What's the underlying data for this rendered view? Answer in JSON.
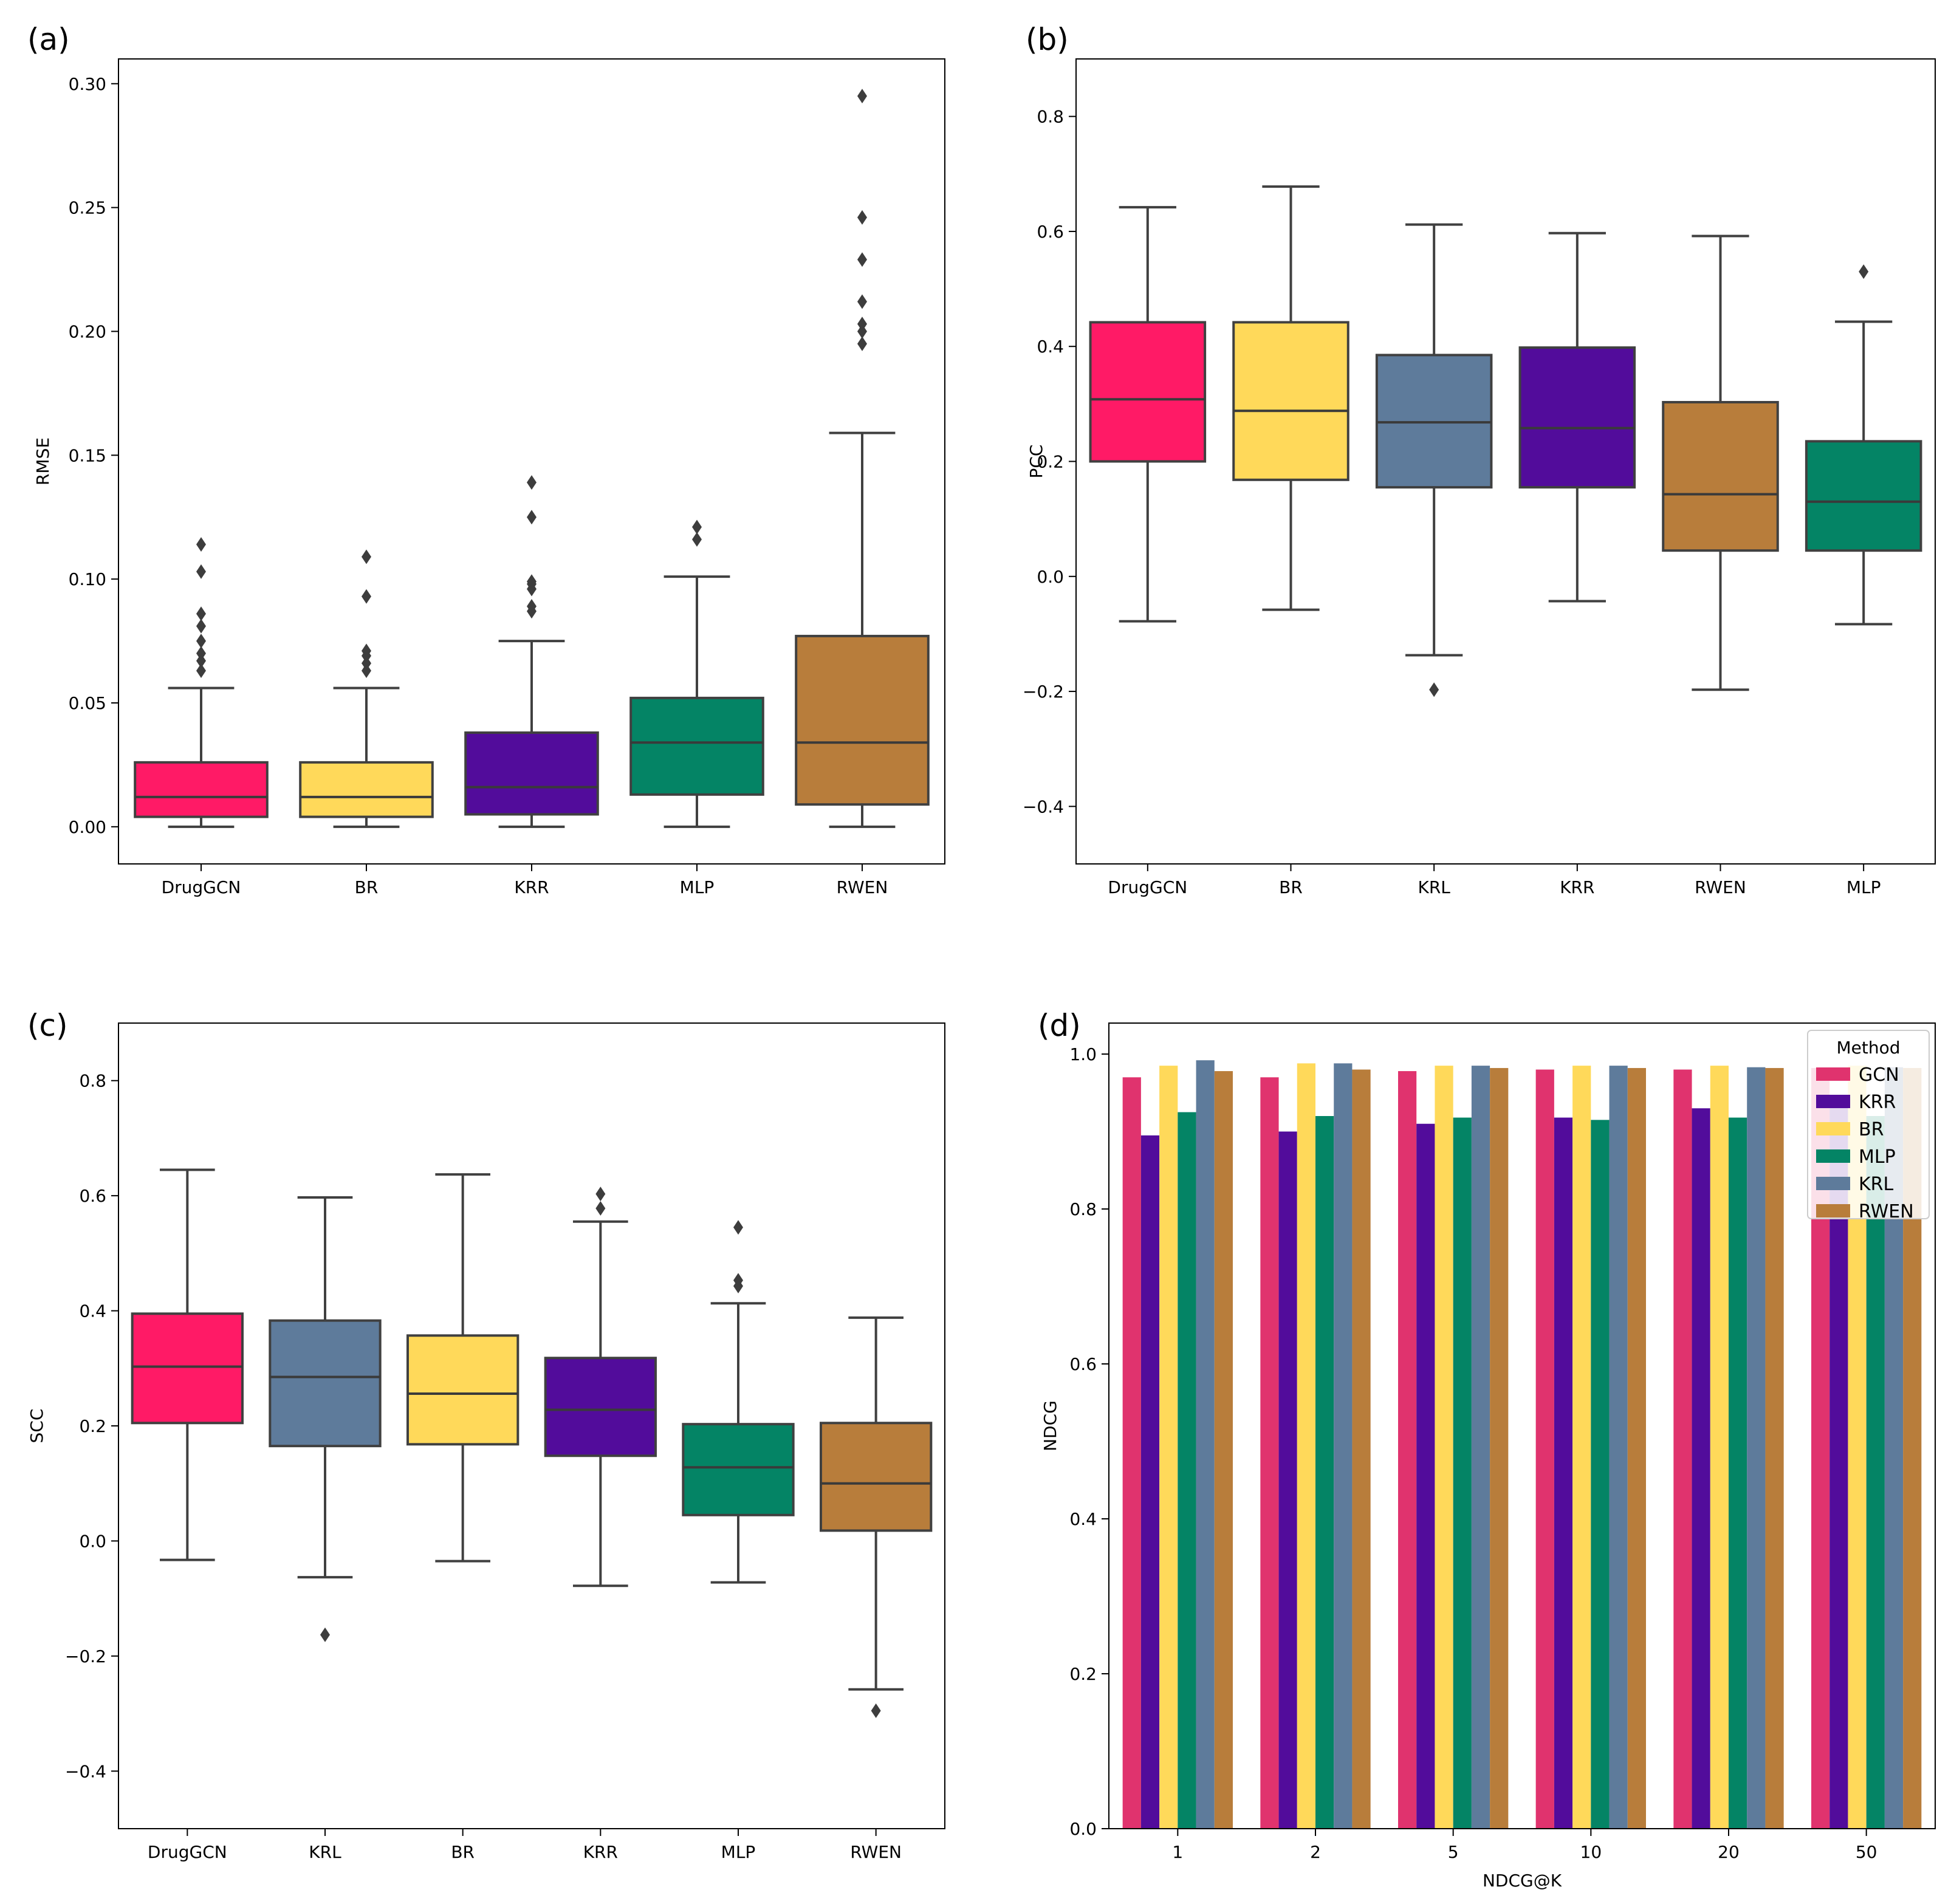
{
  "colors": {
    "DrugGCN": "#ff1a66",
    "GCN": "#e0336e",
    "BR": "#ffd95a",
    "KRR": "#520c9b",
    "MLP": "#048465",
    "RWEN": "#b87d3b",
    "KRL": "#5e7b9b",
    "median": "#3a3a3a",
    "whisker": "#404040"
  },
  "chart_data": [
    {
      "panel": "(a)",
      "type": "box",
      "ylabel": "RMSE",
      "ylim": [
        -0.015,
        0.31
      ],
      "yticks": [
        0.0,
        0.05,
        0.1,
        0.15,
        0.2,
        0.25,
        0.3
      ],
      "ytick_labels": [
        "0.00",
        "0.05",
        "0.10",
        "0.15",
        "0.20",
        "0.25",
        "0.30"
      ],
      "categories": [
        "DrugGCN",
        "BR",
        "KRR",
        "MLP",
        "RWEN"
      ],
      "boxes": [
        {
          "name": "DrugGCN",
          "whislo": 0.0,
          "q1": 0.004,
          "med": 0.012,
          "q3": 0.026,
          "whishi": 0.056,
          "fliers": [
            0.063,
            0.067,
            0.07,
            0.075,
            0.081,
            0.086,
            0.103,
            0.114
          ]
        },
        {
          "name": "BR",
          "whislo": 0.0,
          "q1": 0.004,
          "med": 0.012,
          "q3": 0.026,
          "whishi": 0.056,
          "fliers": [
            0.063,
            0.066,
            0.069,
            0.071,
            0.093,
            0.109
          ]
        },
        {
          "name": "KRR",
          "whislo": 0.0,
          "q1": 0.005,
          "med": 0.016,
          "q3": 0.038,
          "whishi": 0.075,
          "fliers": [
            0.087,
            0.089,
            0.096,
            0.098,
            0.099,
            0.125,
            0.139
          ]
        },
        {
          "name": "MLP",
          "whislo": 0.0,
          "q1": 0.013,
          "med": 0.034,
          "q3": 0.052,
          "whishi": 0.101,
          "fliers": [
            0.116,
            0.121
          ]
        },
        {
          "name": "RWEN",
          "whislo": 0.0,
          "q1": 0.009,
          "med": 0.034,
          "q3": 0.077,
          "whishi": 0.159,
          "fliers": [
            0.195,
            0.2,
            0.203,
            0.212,
            0.229,
            0.246,
            0.295
          ]
        }
      ]
    },
    {
      "panel": "(b)",
      "type": "box",
      "ylabel": "PCC",
      "ylim": [
        -0.5,
        0.9
      ],
      "yticks": [
        -0.4,
        -0.2,
        0.0,
        0.2,
        0.4,
        0.6,
        0.8
      ],
      "ytick_labels": [
        "−0.4",
        "−0.2",
        "0.0",
        "0.2",
        "0.4",
        "0.6",
        "0.8"
      ],
      "categories": [
        "DrugGCN",
        "BR",
        "KRL",
        "KRR",
        "RWEN",
        "MLP"
      ],
      "boxes": [
        {
          "name": "DrugGCN",
          "whislo": -0.078,
          "q1": 0.2,
          "med": 0.308,
          "q3": 0.442,
          "whishi": 0.642,
          "fliers": []
        },
        {
          "name": "BR",
          "whislo": -0.058,
          "q1": 0.168,
          "med": 0.288,
          "q3": 0.442,
          "whishi": 0.678,
          "fliers": []
        },
        {
          "name": "KRL",
          "whislo": -0.137,
          "q1": 0.155,
          "med": 0.268,
          "q3": 0.385,
          "whishi": 0.612,
          "fliers": [
            -0.197
          ]
        },
        {
          "name": "KRR",
          "whislo": -0.043,
          "q1": 0.155,
          "med": 0.258,
          "q3": 0.398,
          "whishi": 0.597,
          "fliers": []
        },
        {
          "name": "RWEN",
          "whislo": -0.197,
          "q1": 0.045,
          "med": 0.143,
          "q3": 0.303,
          "whishi": 0.592,
          "fliers": []
        },
        {
          "name": "MLP",
          "whislo": -0.083,
          "q1": 0.045,
          "med": 0.13,
          "q3": 0.235,
          "whishi": 0.443,
          "fliers": [
            0.53
          ]
        }
      ]
    },
    {
      "panel": "(c)",
      "type": "box",
      "ylabel": "SCC",
      "ylim": [
        -0.5,
        0.9
      ],
      "yticks": [
        -0.4,
        -0.2,
        0.0,
        0.2,
        0.4,
        0.6,
        0.8
      ],
      "ytick_labels": [
        "−0.4",
        "−0.2",
        "0.0",
        "0.2",
        "0.4",
        "0.6",
        "0.8"
      ],
      "categories": [
        "DrugGCN",
        "KRL",
        "BR",
        "KRR",
        "MLP",
        "RWEN"
      ],
      "boxes": [
        {
          "name": "DrugGCN",
          "whislo": -0.033,
          "q1": 0.205,
          "med": 0.303,
          "q3": 0.395,
          "whishi": 0.645,
          "fliers": []
        },
        {
          "name": "KRL",
          "whislo": -0.063,
          "q1": 0.165,
          "med": 0.285,
          "q3": 0.383,
          "whishi": 0.597,
          "fliers": [
            -0.163
          ]
        },
        {
          "name": "BR",
          "whislo": -0.035,
          "q1": 0.168,
          "med": 0.256,
          "q3": 0.357,
          "whishi": 0.637,
          "fliers": []
        },
        {
          "name": "KRR",
          "whislo": -0.078,
          "q1": 0.148,
          "med": 0.228,
          "q3": 0.318,
          "whishi": 0.555,
          "fliers": [
            0.578,
            0.603
          ]
        },
        {
          "name": "MLP",
          "whislo": -0.072,
          "q1": 0.045,
          "med": 0.128,
          "q3": 0.203,
          "whishi": 0.413,
          "fliers": [
            0.443,
            0.453,
            0.545
          ]
        },
        {
          "name": "RWEN",
          "whislo": -0.258,
          "q1": 0.018,
          "med": 0.1,
          "q3": 0.205,
          "whishi": 0.388,
          "fliers": [
            -0.295
          ]
        }
      ]
    },
    {
      "panel": "(d)",
      "type": "bar",
      "xlabel": "NDCG@K",
      "ylabel": "NDCG",
      "ylim": [
        0.0,
        1.04
      ],
      "yticks": [
        0.0,
        0.2,
        0.4,
        0.6,
        0.8,
        1.0
      ],
      "ytick_labels": [
        "0.0",
        "0.2",
        "0.4",
        "0.6",
        "0.8",
        "1.0"
      ],
      "categories": [
        "1",
        "2",
        "5",
        "10",
        "20",
        "50"
      ],
      "legend_title": "Method",
      "legend_position": "top-right",
      "series": [
        {
          "name": "GCN",
          "values": [
            0.97,
            0.97,
            0.978,
            0.98,
            0.98,
            0.982
          ]
        },
        {
          "name": "KRR",
          "values": [
            0.895,
            0.9,
            0.91,
            0.918,
            0.93,
            0.935
          ]
        },
        {
          "name": "BR",
          "values": [
            0.985,
            0.988,
            0.985,
            0.985,
            0.985,
            0.985
          ]
        },
        {
          "name": "MLP",
          "values": [
            0.925,
            0.92,
            0.918,
            0.915,
            0.918,
            0.92
          ]
        },
        {
          "name": "KRL",
          "values": [
            0.992,
            0.988,
            0.985,
            0.985,
            0.983,
            0.983
          ]
        },
        {
          "name": "RWEN",
          "values": [
            0.978,
            0.98,
            0.982,
            0.982,
            0.982,
            0.982
          ]
        }
      ]
    }
  ]
}
